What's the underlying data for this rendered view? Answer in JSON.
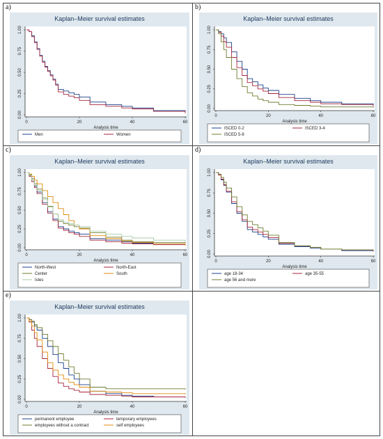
{
  "common": {
    "title": "Kaplan–Meier survival estimates",
    "xlabel": "Analysis time",
    "y_ticks": [
      "0.00",
      "0.25",
      "0.50",
      "0.75",
      "1.00"
    ],
    "x_ticks": [
      "0",
      "20",
      "40",
      "60"
    ]
  },
  "colors": {
    "blue": "#1a3f8a",
    "red": "#a4243b",
    "olive": "#6f7b2e",
    "orange": "#e08a0b",
    "lightgreen": "#a9c9a9",
    "background": "#dfe8ee"
  },
  "chart_data": [
    {
      "panel_label": "a)",
      "type": "line",
      "title": "Kaplan–Meier survival estimates",
      "xlabel": "Analysis time",
      "ylabel": "",
      "xlim": [
        0,
        60
      ],
      "ylim": [
        0,
        1
      ],
      "grid": false,
      "legend_position": "bottom",
      "series": [
        {
          "name": "Men",
          "color": "#1a3f8a",
          "x": [
            0,
            1,
            2,
            3,
            4,
            5,
            6,
            7,
            8,
            9,
            10,
            11,
            12,
            14,
            16,
            18,
            20,
            24,
            30,
            36,
            40,
            48,
            60
          ],
          "y": [
            1.0,
            0.98,
            0.93,
            0.86,
            0.78,
            0.7,
            0.63,
            0.57,
            0.52,
            0.47,
            0.42,
            0.36,
            0.3,
            0.28,
            0.26,
            0.24,
            0.21,
            0.15,
            0.12,
            0.1,
            0.08,
            0.05,
            0.03
          ]
        },
        {
          "name": "Women",
          "color": "#a4243b",
          "x": [
            0,
            1,
            2,
            3,
            4,
            5,
            6,
            7,
            8,
            9,
            10,
            11,
            12,
            14,
            16,
            18,
            20,
            24,
            30,
            36,
            40,
            48,
            60
          ],
          "y": [
            1.0,
            0.98,
            0.92,
            0.85,
            0.77,
            0.69,
            0.62,
            0.56,
            0.51,
            0.46,
            0.41,
            0.35,
            0.27,
            0.24,
            0.22,
            0.2,
            0.17,
            0.12,
            0.1,
            0.08,
            0.07,
            0.04,
            0.02
          ]
        }
      ]
    },
    {
      "panel_label": "b)",
      "type": "line",
      "title": "Kaplan–Meier survival estimates",
      "xlabel": "Analysis time",
      "ylabel": "",
      "xlim": [
        0,
        60
      ],
      "ylim": [
        0,
        1
      ],
      "grid": false,
      "legend_position": "bottom",
      "series": [
        {
          "name": "ISCED 0-2",
          "color": "#1a3f8a",
          "x": [
            0,
            1,
            2,
            3,
            4,
            6,
            8,
            10,
            12,
            14,
            16,
            18,
            20,
            24,
            30,
            36,
            40,
            48,
            60
          ],
          "y": [
            1.0,
            0.98,
            0.95,
            0.9,
            0.84,
            0.72,
            0.6,
            0.5,
            0.38,
            0.34,
            0.3,
            0.26,
            0.23,
            0.18,
            0.13,
            0.1,
            0.08,
            0.06,
            0.04
          ]
        },
        {
          "name": "ISCED 3-4",
          "color": "#a4243b",
          "x": [
            0,
            1,
            2,
            3,
            4,
            6,
            8,
            10,
            12,
            14,
            16,
            18,
            20,
            24,
            30,
            36,
            40,
            48,
            60
          ],
          "y": [
            1.0,
            0.97,
            0.92,
            0.85,
            0.78,
            0.65,
            0.52,
            0.42,
            0.33,
            0.29,
            0.25,
            0.22,
            0.19,
            0.14,
            0.1,
            0.08,
            0.06,
            0.05,
            0.03
          ]
        },
        {
          "name": "ISCED 5-8",
          "color": "#6f7b2e",
          "x": [
            0,
            1,
            2,
            3,
            4,
            6,
            8,
            10,
            12,
            14,
            16,
            18,
            20,
            24,
            30,
            36,
            40,
            48,
            60
          ],
          "y": [
            1.0,
            0.95,
            0.85,
            0.75,
            0.65,
            0.5,
            0.38,
            0.28,
            0.2,
            0.16,
            0.12,
            0.1,
            0.08,
            0.05,
            0.04,
            0.03,
            0.02,
            0.02,
            0.01
          ]
        }
      ]
    },
    {
      "panel_label": "c)",
      "type": "line",
      "title": "Kaplan–Meier survival estimates",
      "xlabel": "Analysis time",
      "ylabel": "",
      "xlim": [
        0,
        60
      ],
      "ylim": [
        0,
        1
      ],
      "grid": false,
      "legend_position": "bottom",
      "series": [
        {
          "name": "North-West",
          "color": "#1a3f8a",
          "x": [
            0,
            1,
            2,
            3,
            4,
            6,
            8,
            10,
            12,
            14,
            16,
            18,
            20,
            24,
            30,
            36,
            40,
            48,
            60
          ],
          "y": [
            1.0,
            0.96,
            0.9,
            0.82,
            0.74,
            0.6,
            0.48,
            0.38,
            0.28,
            0.25,
            0.22,
            0.2,
            0.18,
            0.12,
            0.1,
            0.08,
            0.06,
            0.05,
            0.04
          ]
        },
        {
          "name": "North-East",
          "color": "#a4243b",
          "x": [
            0,
            1,
            2,
            3,
            4,
            6,
            8,
            10,
            12,
            14,
            16,
            18,
            20,
            24,
            30,
            36,
            40,
            48,
            60
          ],
          "y": [
            1.0,
            0.95,
            0.88,
            0.8,
            0.72,
            0.58,
            0.46,
            0.36,
            0.26,
            0.23,
            0.2,
            0.18,
            0.15,
            0.1,
            0.08,
            0.06,
            0.05,
            0.04,
            0.03
          ]
        },
        {
          "name": "Center",
          "color": "#6f7b2e",
          "x": [
            0,
            1,
            2,
            3,
            4,
            6,
            8,
            10,
            12,
            14,
            16,
            18,
            20,
            24,
            30,
            36,
            40,
            48,
            60
          ],
          "y": [
            1.0,
            0.97,
            0.92,
            0.85,
            0.78,
            0.66,
            0.55,
            0.45,
            0.35,
            0.32,
            0.3,
            0.28,
            0.26,
            0.2,
            0.14,
            0.1,
            0.08,
            0.07,
            0.06
          ]
        },
        {
          "name": "South",
          "color": "#e08a0b",
          "x": [
            0,
            1,
            2,
            3,
            4,
            6,
            8,
            10,
            12,
            14,
            16,
            18,
            20,
            24,
            30,
            36,
            40,
            48,
            60
          ],
          "y": [
            1.0,
            0.98,
            0.95,
            0.9,
            0.85,
            0.76,
            0.68,
            0.6,
            0.52,
            0.44,
            0.36,
            0.3,
            0.25,
            0.16,
            0.12,
            0.09,
            0.07,
            0.05,
            0.03
          ]
        },
        {
          "name": "Isles",
          "color": "#a9c9a9",
          "x": [
            0,
            1,
            2,
            3,
            4,
            6,
            8,
            10,
            12,
            14,
            16,
            18,
            20,
            24,
            30,
            36,
            40,
            48,
            60
          ],
          "y": [
            1.0,
            0.96,
            0.9,
            0.83,
            0.76,
            0.64,
            0.54,
            0.45,
            0.37,
            0.34,
            0.32,
            0.3,
            0.28,
            0.22,
            0.18,
            0.15,
            0.13,
            0.1,
            0.08
          ]
        }
      ]
    },
    {
      "panel_label": "d)",
      "type": "line",
      "title": "Kaplan–Meier survival estimates",
      "xlabel": "Analysis time",
      "ylabel": "",
      "xlim": [
        0,
        60
      ],
      "ylim": [
        0,
        1
      ],
      "grid": false,
      "legend_position": "bottom",
      "series": [
        {
          "name": "age 18-34",
          "color": "#1a3f8a",
          "x": [
            0,
            1,
            2,
            3,
            4,
            6,
            8,
            10,
            12,
            14,
            16,
            18,
            20,
            24,
            30,
            36,
            40,
            48,
            60
          ],
          "y": [
            1.0,
            0.97,
            0.91,
            0.84,
            0.76,
            0.62,
            0.5,
            0.4,
            0.3,
            0.27,
            0.24,
            0.21,
            0.18,
            0.12,
            0.09,
            0.07,
            0.06,
            0.04,
            0.03
          ]
        },
        {
          "name": "age 35-55",
          "color": "#a4243b",
          "x": [
            0,
            1,
            2,
            3,
            4,
            6,
            8,
            10,
            12,
            14,
            16,
            18,
            20,
            24,
            30,
            36,
            40,
            48,
            60
          ],
          "y": [
            1.0,
            0.97,
            0.92,
            0.85,
            0.77,
            0.64,
            0.52,
            0.42,
            0.33,
            0.3,
            0.27,
            0.24,
            0.2,
            0.13,
            0.1,
            0.08,
            0.06,
            0.05,
            0.03
          ]
        },
        {
          "name": "age 56 and more",
          "color": "#6f7b2e",
          "x": [
            0,
            1,
            2,
            3,
            4,
            6,
            8,
            10,
            12,
            14,
            16,
            18,
            20,
            24,
            30,
            36,
            40,
            48,
            60
          ],
          "y": [
            1.0,
            0.98,
            0.94,
            0.88,
            0.81,
            0.7,
            0.58,
            0.48,
            0.4,
            0.36,
            0.32,
            0.28,
            0.23,
            0.14,
            0.1,
            0.08,
            0.06,
            0.05,
            0.04
          ]
        }
      ]
    },
    {
      "panel_label": "e)",
      "type": "line",
      "title": "Kaplan–Meier survival estimates",
      "xlabel": "Analysis time",
      "ylabel": "",
      "xlim": [
        0,
        60
      ],
      "ylim": [
        0,
        1
      ],
      "grid": false,
      "legend_position": "bottom",
      "series": [
        {
          "name": "permanent employee",
          "color": "#1a3f8a",
          "x": [
            0,
            1,
            2,
            3,
            4,
            6,
            8,
            10,
            12,
            14,
            16,
            18,
            20,
            24,
            30,
            36,
            40,
            48,
            60
          ],
          "y": [
            1.0,
            0.98,
            0.95,
            0.9,
            0.85,
            0.75,
            0.65,
            0.55,
            0.45,
            0.38,
            0.3,
            0.25,
            0.18,
            0.1,
            0.07,
            0.05,
            0.04,
            0.03,
            0.02
          ]
        },
        {
          "name": "temporary employees",
          "color": "#a4243b",
          "x": [
            0,
            1,
            2,
            3,
            4,
            6,
            8,
            10,
            12,
            14,
            16,
            18,
            20,
            24,
            30,
            36,
            40,
            48,
            60
          ],
          "y": [
            1.0,
            0.95,
            0.85,
            0.75,
            0.65,
            0.5,
            0.38,
            0.28,
            0.2,
            0.16,
            0.13,
            0.11,
            0.09,
            0.06,
            0.05,
            0.04,
            0.03,
            0.03,
            0.02
          ]
        },
        {
          "name": "employees without a contract",
          "color": "#6f7b2e",
          "x": [
            0,
            1,
            2,
            3,
            4,
            6,
            8,
            10,
            12,
            14,
            16,
            18,
            20,
            24,
            30,
            36,
            40,
            48,
            60
          ],
          "y": [
            1.0,
            0.98,
            0.96,
            0.92,
            0.88,
            0.8,
            0.72,
            0.65,
            0.56,
            0.48,
            0.4,
            0.32,
            0.25,
            0.15,
            0.13,
            0.13,
            0.13,
            0.13,
            0.12
          ]
        },
        {
          "name": "self employees",
          "color": "#e08a0b",
          "x": [
            0,
            1,
            2,
            3,
            4,
            6,
            8,
            10,
            12,
            14,
            16,
            18,
            20,
            24,
            30,
            36,
            40,
            48,
            60
          ],
          "y": [
            1.0,
            0.96,
            0.9,
            0.82,
            0.73,
            0.58,
            0.45,
            0.36,
            0.3,
            0.25,
            0.21,
            0.18,
            0.15,
            0.1,
            0.09,
            0.08,
            0.07,
            0.07,
            0.06
          ]
        }
      ]
    }
  ]
}
